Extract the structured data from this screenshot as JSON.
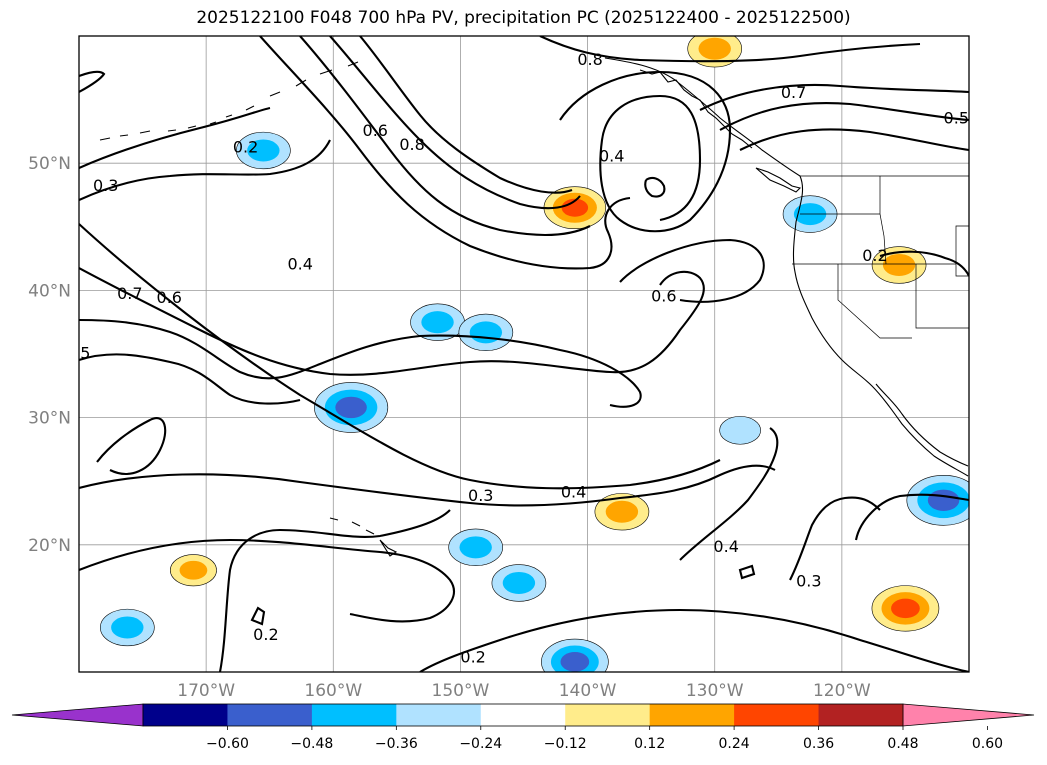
{
  "chart_data": {
    "type": "map-contour",
    "title": "2025122100 F048 700 hPa PV, precipitation PC (2025122400 - 2025122500)",
    "projection": "plate carree",
    "lon_range": [
      -180,
      -110
    ],
    "lat_range": [
      10,
      60
    ],
    "latitude_ticks": [
      {
        "lat": 50,
        "label": "50°N"
      },
      {
        "lat": 40,
        "label": "40°N"
      },
      {
        "lat": 30,
        "label": "30°N"
      },
      {
        "lat": 20,
        "label": "20°N"
      }
    ],
    "longitude_ticks": [
      {
        "lon": -170,
        "label": "170°W"
      },
      {
        "lon": -160,
        "label": "160°W"
      },
      {
        "lon": -150,
        "label": "150°W"
      },
      {
        "lon": -140,
        "label": "140°W"
      },
      {
        "lon": -130,
        "label": "130°W"
      },
      {
        "lon": -120,
        "label": "120°W"
      }
    ],
    "grid": true,
    "colorbar": {
      "orientation": "horizontal",
      "extend": "both",
      "levels": [
        -0.6,
        -0.48,
        -0.36,
        -0.24,
        -0.12,
        0.12,
        0.24,
        0.36,
        0.48,
        0.6
      ],
      "tick_labels": [
        "−0.60",
        "−0.48",
        "−0.36",
        "−0.24",
        "−0.12",
        "0.12",
        "0.24",
        "0.36",
        "0.48",
        "0.60"
      ],
      "colors": [
        "#9932cc",
        "#00008b",
        "#3a5fcd",
        "#00bfff",
        "#b0e2ff",
        "#ffffff",
        "#ffec8b",
        "#ffa500",
        "#ff4500",
        "#b22222",
        "#ff82ab"
      ]
    },
    "contour_labels": [
      {
        "text": "0.8",
        "lon": -139.8,
        "lat": 58.2
      },
      {
        "text": "0.7",
        "lon": -123.8,
        "lat": 55.6
      },
      {
        "text": "0.5",
        "lon": -111.0,
        "lat": 53.6
      },
      {
        "text": "0.6",
        "lon": -156.7,
        "lat": 52.6
      },
      {
        "text": "0.8",
        "lon": -153.8,
        "lat": 51.5
      },
      {
        "text": "0.2",
        "lon": -166.9,
        "lat": 51.3
      },
      {
        "text": "0.4",
        "lon": -138.1,
        "lat": 50.6
      },
      {
        "text": "0.3",
        "lon": -177.9,
        "lat": 48.3
      },
      {
        "text": "0.4",
        "lon": -162.6,
        "lat": 42.1
      },
      {
        "text": "0.2",
        "lon": -117.4,
        "lat": 42.8
      },
      {
        "text": "0.7",
        "lon": -176.0,
        "lat": 39.8
      },
      {
        "text": "0.6",
        "lon": -172.9,
        "lat": 39.5
      },
      {
        "text": "0.6",
        "lon": -134.0,
        "lat": 39.6
      },
      {
        "text": "5",
        "lon": -179.5,
        "lat": 35.1
      },
      {
        "text": "0.3",
        "lon": -148.4,
        "lat": 23.9
      },
      {
        "text": "0.4",
        "lon": -141.1,
        "lat": 24.2
      },
      {
        "text": "0.4",
        "lon": -129.1,
        "lat": 19.9
      },
      {
        "text": "0.3",
        "lon": -122.6,
        "lat": 17.2
      },
      {
        "text": "0.2",
        "lon": -165.3,
        "lat": 13.0
      },
      {
        "text": "0.2",
        "lon": -149.0,
        "lat": 11.2
      }
    ],
    "precip_patches": [
      {
        "name": "pos-gulf-alaska-top",
        "lon": -130.0,
        "lat": 59.0,
        "value": 0.3
      },
      {
        "name": "pos-north-pacific",
        "lon": -141.0,
        "lat": 46.5,
        "value": 0.36
      },
      {
        "name": "pos-idaho",
        "lon": -115.5,
        "lat": 42.0,
        "value": 0.3
      },
      {
        "name": "pos-subtropics",
        "lon": -137.3,
        "lat": 22.6,
        "value": 0.3
      },
      {
        "name": "pos-west",
        "lon": -171.0,
        "lat": 18.0,
        "value": 0.24
      },
      {
        "name": "pos-mexico-coast",
        "lon": -115.0,
        "lat": 15.0,
        "value": 0.4
      },
      {
        "name": "neg-gulf-alaska",
        "lon": -165.5,
        "lat": 51.0,
        "value": -0.3
      },
      {
        "name": "neg-central-1",
        "lon": -151.8,
        "lat": 37.5,
        "value": -0.3
      },
      {
        "name": "neg-central-2",
        "lon": -148.0,
        "lat": 36.7,
        "value": -0.3
      },
      {
        "name": "neg-hawaii-north",
        "lon": -158.6,
        "lat": 30.8,
        "value": -0.45
      },
      {
        "name": "neg-hawaii-south",
        "lon": -148.8,
        "lat": 19.8,
        "value": -0.3
      },
      {
        "name": "neg-southwest",
        "lon": -145.4,
        "lat": 17.0,
        "value": -0.3
      },
      {
        "name": "neg-south-bottom",
        "lon": -141.0,
        "lat": 10.8,
        "value": -0.4
      },
      {
        "name": "neg-west-small",
        "lon": -176.2,
        "lat": 13.5,
        "value": -0.3
      },
      {
        "name": "neg-baja",
        "lon": -112.0,
        "lat": 23.5,
        "value": -0.45
      },
      {
        "name": "neg-oregon",
        "lon": -122.5,
        "lat": 46.0,
        "value": -0.3
      },
      {
        "name": "neg-east-small",
        "lon": -128.0,
        "lat": 29.0,
        "value": -0.2
      }
    ]
  }
}
